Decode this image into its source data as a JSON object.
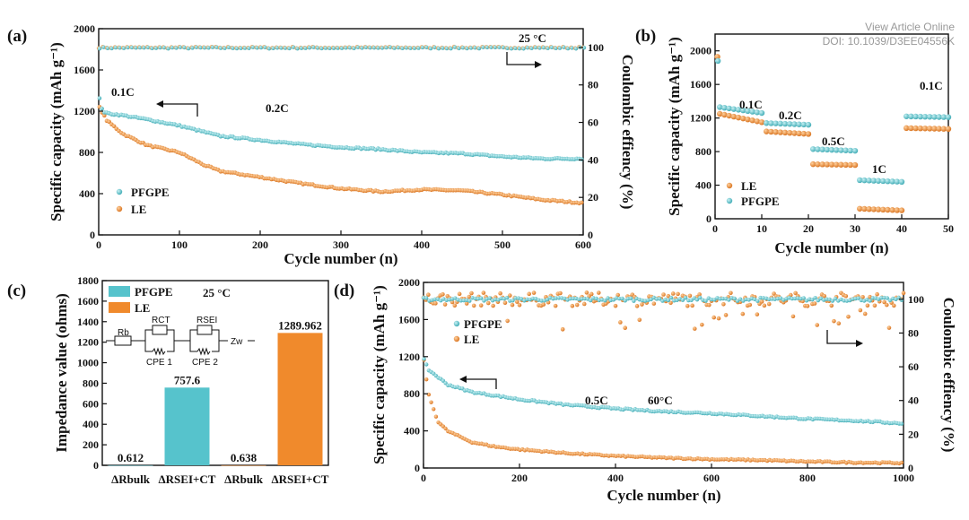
{
  "watermark": {
    "line1": "View Article Online",
    "line2": "DOI: 10.1039/D3EE04556K"
  },
  "colors": {
    "pfgpe": "#56c3cc",
    "le": "#f08a2c",
    "ink": "#111111"
  },
  "chart_data": [
    {
      "panel": "(a)",
      "type": "scatter",
      "xlabel": "Cycle number (n)",
      "ylabel": "Specific capacity (mAh g⁻¹)",
      "y2label": "Coulombic effiency (%)",
      "xlim": [
        0,
        600
      ],
      "ylim": [
        0,
        2000
      ],
      "y2lim": [
        0,
        110
      ],
      "xticks": [
        0,
        100,
        200,
        300,
        400,
        500,
        600
      ],
      "yticks": [
        0,
        400,
        800,
        1200,
        1600,
        2000
      ],
      "y2ticks": [
        0,
        20,
        40,
        60,
        80,
        100
      ],
      "annotations": [
        "25 °C",
        "0.1C",
        "0.2C"
      ],
      "legend": [
        "PFGPE",
        "LE"
      ],
      "series": [
        {
          "name": "PFGPE",
          "x": [
            0,
            5,
            10,
            30,
            60,
            100,
            130,
            150,
            200,
            250,
            300,
            350,
            400,
            450,
            500,
            550,
            600
          ],
          "values": [
            1350,
            1200,
            1180,
            1160,
            1120,
            1060,
            1000,
            960,
            920,
            880,
            850,
            830,
            800,
            790,
            760,
            740,
            740
          ]
        },
        {
          "name": "LE",
          "x": [
            0,
            5,
            10,
            30,
            60,
            100,
            130,
            150,
            200,
            250,
            300,
            350,
            400,
            450,
            500,
            550,
            600
          ],
          "values": [
            1250,
            1180,
            1110,
            980,
            870,
            800,
            680,
            620,
            560,
            500,
            450,
            420,
            440,
            430,
            390,
            340,
            310
          ]
        },
        {
          "name": "CE",
          "axis": "right",
          "x": [
            0,
            600
          ],
          "values": [
            100,
            100
          ]
        }
      ]
    },
    {
      "panel": "(b)",
      "type": "scatter",
      "xlabel": "Cycle number (n)",
      "ylabel": "Specific capacity (mAh g⁻¹)",
      "xlim": [
        0,
        50
      ],
      "ylim": [
        0,
        2200
      ],
      "xticks": [
        0,
        10,
        20,
        30,
        40,
        50
      ],
      "yticks": [
        0,
        400,
        800,
        1200,
        1600,
        2000
      ],
      "annotations": [
        "0.1C",
        "0.2C",
        "0.5C",
        "1C",
        "0.1C"
      ],
      "legend": [
        "LE",
        "PFGPE"
      ],
      "series": [
        {
          "name": "PFGPE",
          "segments": [
            {
              "x0": 1,
              "x1": 10,
              "v0": 1330,
              "v1": 1260
            },
            {
              "x0": 11,
              "x1": 20,
              "v0": 1140,
              "v1": 1120
            },
            {
              "x0": 21,
              "x1": 30,
              "v0": 830,
              "v1": 810
            },
            {
              "x0": 31,
              "x1": 40,
              "v0": 460,
              "v1": 440
            },
            {
              "x0": 41,
              "x1": 50,
              "v0": 1220,
              "v1": 1210
            }
          ]
        },
        {
          "name": "LE",
          "segments": [
            {
              "x0": 1,
              "x1": 10,
              "v0": 1250,
              "v1": 1150
            },
            {
              "x0": 11,
              "x1": 20,
              "v0": 1040,
              "v1": 1010
            },
            {
              "x0": 21,
              "x1": 30,
              "v0": 650,
              "v1": 640
            },
            {
              "x0": 31,
              "x1": 40,
              "v0": 120,
              "v1": 100
            },
            {
              "x0": 41,
              "x1": 50,
              "v0": 1080,
              "v1": 1070
            }
          ]
        }
      ]
    },
    {
      "panel": "(c)",
      "type": "bar",
      "ylabel": "Impedance value (ohms)",
      "ylim": [
        0,
        1800
      ],
      "yticks": [
        0,
        200,
        400,
        600,
        800,
        1000,
        1200,
        1400,
        1600,
        1800
      ],
      "categories": [
        "ΔRbulk",
        "ΔRSEI+CT",
        "ΔRbulk",
        "ΔRSEI+CT"
      ],
      "values": [
        0.612,
        757.6,
        0.638,
        1289.962
      ],
      "value_labels": [
        "0.612",
        "757.6",
        "0.638",
        "1289.962"
      ],
      "bar_series": [
        "PFGPE",
        "PFGPE",
        "LE",
        "LE"
      ],
      "legend": [
        "PFGPE",
        "LE"
      ],
      "annotations": [
        "25 °C"
      ],
      "circuit_labels": [
        "Rb",
        "RCT",
        "RSEI",
        "Zw",
        "CPE 1",
        "CPE 2"
      ]
    },
    {
      "panel": "(d)",
      "type": "scatter",
      "xlabel": "Cycle number (n)",
      "ylabel": "Specific capacity (mAh g⁻¹)",
      "y2label": "Coulombic effiency (%)",
      "xlim": [
        0,
        1000
      ],
      "ylim": [
        0,
        2000
      ],
      "y2lim": [
        0,
        110
      ],
      "xticks": [
        0,
        200,
        400,
        600,
        800,
        1000
      ],
      "yticks": [
        0,
        400,
        800,
        1200,
        1600,
        2000
      ],
      "y2ticks": [
        0,
        20,
        40,
        60,
        80,
        100
      ],
      "annotations": [
        "0.5C",
        "60°C"
      ],
      "legend": [
        "PFGPE",
        "LE"
      ],
      "series": [
        {
          "name": "PFGPE",
          "x": [
            0,
            10,
            50,
            100,
            200,
            300,
            400,
            500,
            600,
            700,
            800,
            900,
            1000
          ],
          "values": [
            1180,
            1060,
            900,
            820,
            740,
            680,
            640,
            610,
            590,
            560,
            530,
            510,
            480
          ]
        },
        {
          "name": "LE",
          "x": [
            0,
            10,
            30,
            50,
            100,
            150,
            200,
            300,
            400,
            500,
            600,
            700,
            800,
            900,
            1000
          ],
          "values": [
            1200,
            800,
            500,
            400,
            280,
            230,
            200,
            160,
            130,
            110,
            95,
            85,
            70,
            60,
            55
          ]
        },
        {
          "name": "CE PFGPE",
          "axis": "right",
          "x": [
            0,
            1000
          ],
          "values": [
            100,
            100
          ]
        },
        {
          "name": "CE LE",
          "axis": "right",
          "x": [
            0,
            1000
          ],
          "values": [
            100,
            100
          ]
        }
      ]
    }
  ]
}
